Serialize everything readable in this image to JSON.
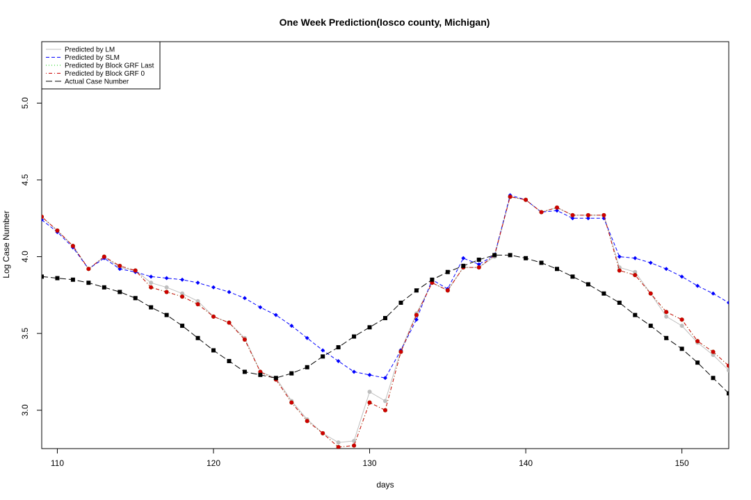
{
  "chart_data": {
    "type": "line",
    "title": "One Week Prediction(Iosco county, Michigan)",
    "xlabel": "days",
    "ylabel": "Log Case Number",
    "xlim": [
      109,
      153
    ],
    "ylim": [
      2.75,
      5.4
    ],
    "xticks": [
      110,
      120,
      130,
      140,
      150
    ],
    "yticks": [
      3.0,
      3.5,
      4.0,
      4.5,
      5.0
    ],
    "x": [
      109,
      110,
      111,
      112,
      113,
      114,
      115,
      116,
      117,
      118,
      119,
      120,
      121,
      122,
      123,
      124,
      125,
      126,
      127,
      128,
      129,
      130,
      131,
      132,
      133,
      134,
      135,
      136,
      137,
      138,
      139,
      140,
      141,
      142,
      143,
      144,
      145,
      146,
      147,
      148,
      149,
      150,
      151,
      152,
      153
    ],
    "legend": {
      "position": "top-left",
      "entries": [
        {
          "label": "Predicted by LM",
          "color": "#bebebe",
          "dash": "solid"
        },
        {
          "label": "Predicted by SLM",
          "color": "#0000ff",
          "dash": "dashed"
        },
        {
          "label": "Predicted by Block GRF Last",
          "color": "#00cd00",
          "dash": "dotted"
        },
        {
          "label": "Predicted by Block GRF 0",
          "color": "#cd0000",
          "dash": "dotdash"
        },
        {
          "label": "Actual Case Number",
          "color": "#000000",
          "dash": "longdash"
        }
      ]
    },
    "series": [
      {
        "name": "Predicted by LM",
        "color": "#bebebe",
        "dash": "solid",
        "marker": "circle",
        "values": [
          4.26,
          4.17,
          4.07,
          3.92,
          4.0,
          3.93,
          3.91,
          3.83,
          3.8,
          3.76,
          3.71,
          3.61,
          3.57,
          3.47,
          3.25,
          3.21,
          3.06,
          2.94,
          2.85,
          2.79,
          2.8,
          3.12,
          3.06,
          3.39,
          3.63,
          3.83,
          3.78,
          3.93,
          3.93,
          4.0,
          4.39,
          4.37,
          4.29,
          4.32,
          4.27,
          4.27,
          4.27,
          3.93,
          3.9,
          3.76,
          3.61,
          3.55,
          3.44,
          3.36,
          3.26
        ]
      },
      {
        "name": "Predicted by SLM",
        "color": "#0000ff",
        "dash": "dashed",
        "marker": "diamond",
        "values": [
          4.24,
          4.16,
          4.06,
          3.92,
          3.99,
          3.92,
          3.9,
          3.87,
          3.86,
          3.85,
          3.83,
          3.8,
          3.77,
          3.73,
          3.67,
          3.62,
          3.55,
          3.47,
          3.39,
          3.32,
          3.25,
          3.23,
          3.21,
          3.39,
          3.59,
          3.85,
          3.79,
          3.99,
          3.95,
          4.01,
          4.4,
          4.37,
          4.29,
          4.3,
          4.25,
          4.25,
          4.25,
          4.0,
          3.99,
          3.96,
          3.92,
          3.87,
          3.81,
          3.76,
          3.7
        ]
      },
      {
        "name": "Predicted by Block GRF Last",
        "color": "#00cd00",
        "dash": "dotted",
        "marker": "circle",
        "values": [
          4.26,
          4.17,
          4.07,
          3.92,
          4.0,
          3.94,
          3.91,
          3.8,
          3.77,
          3.74,
          3.69,
          3.61,
          3.57,
          3.46,
          3.25,
          3.2,
          3.05,
          2.93,
          2.85,
          2.76,
          2.77,
          3.05,
          3.0,
          3.38,
          3.62,
          3.83,
          3.78,
          3.93,
          3.93,
          4.01,
          4.39,
          4.37,
          4.29,
          4.32,
          4.27,
          4.27,
          4.27,
          3.91,
          3.88,
          3.76,
          3.64,
          3.59,
          3.45,
          3.38,
          3.29
        ]
      },
      {
        "name": "Predicted by Block GRF 0",
        "color": "#cd0000",
        "dash": "dotdash",
        "marker": "circle",
        "values": [
          4.26,
          4.17,
          4.07,
          3.92,
          4.0,
          3.94,
          3.91,
          3.8,
          3.77,
          3.74,
          3.69,
          3.61,
          3.57,
          3.46,
          3.25,
          3.2,
          3.05,
          2.93,
          2.85,
          2.76,
          2.77,
          3.05,
          3.0,
          3.38,
          3.62,
          3.83,
          3.78,
          3.93,
          3.93,
          4.01,
          4.39,
          4.37,
          4.29,
          4.32,
          4.27,
          4.27,
          4.27,
          3.91,
          3.88,
          3.76,
          3.64,
          3.59,
          3.45,
          3.38,
          3.29
        ]
      },
      {
        "name": "Actual Case Number",
        "color": "#000000",
        "dash": "longdash",
        "marker": "square",
        "values": [
          3.87,
          3.86,
          3.85,
          3.83,
          3.8,
          3.77,
          3.73,
          3.67,
          3.62,
          3.55,
          3.47,
          3.39,
          3.32,
          3.25,
          3.23,
          3.21,
          3.24,
          3.28,
          3.35,
          3.41,
          3.48,
          3.54,
          3.6,
          3.7,
          3.78,
          3.85,
          3.9,
          3.94,
          3.98,
          4.01,
          4.01,
          3.99,
          3.96,
          3.92,
          3.87,
          3.82,
          3.76,
          3.7,
          3.62,
          3.55,
          3.47,
          3.4,
          3.31,
          3.21,
          3.11
        ]
      }
    ]
  }
}
